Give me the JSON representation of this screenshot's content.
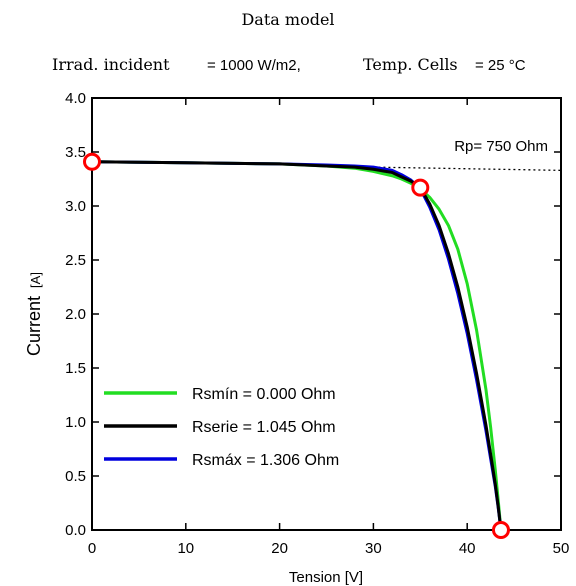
{
  "chart_data": {
    "type": "line",
    "title": "Data model",
    "subtitle_left": "Irrad. incident",
    "subtitle_left_value": "= 1000 W/m2,",
    "subtitle_right": "Temp. Cells",
    "subtitle_right_value": "= 25 °C",
    "xlabel": "Tension [V]",
    "ylabel": "Current",
    "ylabel_unit": "[A]",
    "xlim": [
      0,
      50
    ],
    "ylim": [
      0,
      4
    ],
    "xticks": [
      0,
      10,
      20,
      30,
      40,
      50
    ],
    "yticks": [
      0.0,
      0.5,
      1.0,
      1.5,
      2.0,
      2.5,
      3.0,
      3.5,
      4.0
    ],
    "xtick_labels": [
      "0",
      "10",
      "20",
      "30",
      "40",
      "50"
    ],
    "ytick_labels": [
      "0.0",
      "0.5",
      "1.0",
      "1.5",
      "2.0",
      "2.5",
      "3.0",
      "3.5",
      "4.0"
    ],
    "annotation": "Rp= 750 Ohm",
    "legend_position": "bottom-left",
    "grid": false,
    "series": [
      {
        "name": "Rsmín = 0.000 Ohm",
        "color": "#22dd22",
        "x": [
          0,
          10,
          20,
          25,
          28,
          30,
          32,
          33,
          34,
          35,
          36,
          37,
          38,
          39,
          40,
          41,
          42,
          42.5,
          43,
          43.3,
          43.6
        ],
        "y": [
          3.41,
          3.4,
          3.39,
          3.37,
          3.35,
          3.32,
          3.28,
          3.25,
          3.21,
          3.16,
          3.08,
          2.97,
          2.82,
          2.6,
          2.28,
          1.85,
          1.3,
          0.95,
          0.55,
          0.28,
          0.0
        ]
      },
      {
        "name": "Rserie = 1.045 Ohm",
        "color": "#000000",
        "x": [
          0,
          10,
          20,
          25,
          28,
          30,
          32,
          33,
          34,
          35,
          36,
          37,
          38,
          39,
          40,
          41,
          42,
          42.5,
          43,
          43.3,
          43.6
        ],
        "y": [
          3.41,
          3.4,
          3.39,
          3.37,
          3.36,
          3.34,
          3.31,
          3.27,
          3.23,
          3.17,
          3.02,
          2.82,
          2.56,
          2.25,
          1.88,
          1.45,
          0.97,
          0.7,
          0.42,
          0.22,
          0.0
        ]
      },
      {
        "name": "Rsmáx = 1.306 Ohm",
        "color": "#0000dd",
        "x": [
          0,
          10,
          20,
          25,
          28,
          30,
          32,
          33,
          34,
          35,
          36,
          37,
          38,
          39,
          40,
          41,
          42,
          42.5,
          43,
          43.3,
          43.6
        ],
        "y": [
          3.41,
          3.4,
          3.39,
          3.38,
          3.37,
          3.36,
          3.33,
          3.29,
          3.24,
          3.16,
          2.99,
          2.78,
          2.51,
          2.19,
          1.82,
          1.39,
          0.92,
          0.66,
          0.4,
          0.21,
          0.0
        ]
      }
    ],
    "rp_line": {
      "x": [
        30,
        50
      ],
      "y": [
        3.36,
        3.33
      ],
      "style": "dotted",
      "color": "#000000"
    },
    "markers": [
      {
        "name": "Isc",
        "x": 0,
        "y": 3.41,
        "color": "#ff0000"
      },
      {
        "name": "MPP",
        "x": 35,
        "y": 3.17,
        "color": "#ff0000"
      },
      {
        "name": "Voc",
        "x": 43.6,
        "y": 0.0,
        "color": "#ff0000"
      }
    ]
  }
}
